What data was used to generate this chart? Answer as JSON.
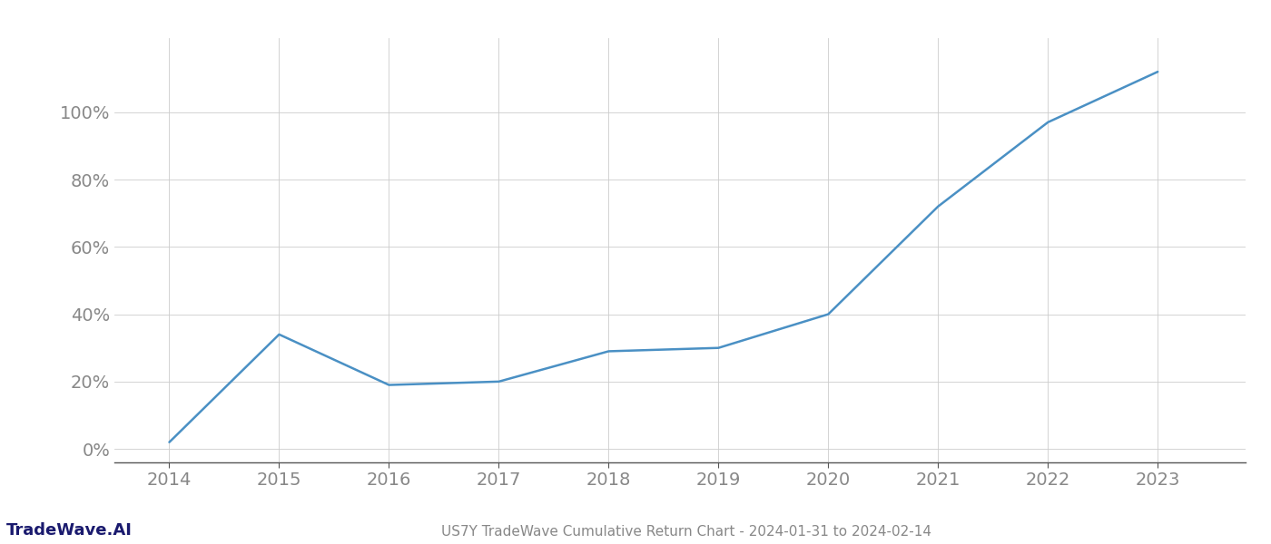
{
  "x_years": [
    2014,
    2015,
    2016,
    2017,
    2018,
    2019,
    2020,
    2021,
    2022,
    2023
  ],
  "y_values": [
    0.02,
    0.34,
    0.19,
    0.2,
    0.29,
    0.3,
    0.4,
    0.72,
    0.97,
    1.12
  ],
  "line_color": "#4a90c4",
  "line_width": 1.8,
  "background_color": "#ffffff",
  "grid_color": "#cccccc",
  "title": "US7Y TradeWave Cumulative Return Chart - 2024-01-31 to 2024-02-14",
  "watermark": "TradeWave.AI",
  "tick_color": "#888888",
  "watermark_color": "#1a1a6e",
  "axis_color": "#555555",
  "ylim": [
    -0.04,
    1.22
  ],
  "yticks": [
    0.0,
    0.2,
    0.4,
    0.6,
    0.8,
    1.0
  ],
  "xlim": [
    2013.5,
    2023.8
  ],
  "xticks": [
    2014,
    2015,
    2016,
    2017,
    2018,
    2019,
    2020,
    2021,
    2022,
    2023
  ],
  "tick_fontsize": 14,
  "title_fontsize": 11,
  "watermark_fontsize": 13
}
